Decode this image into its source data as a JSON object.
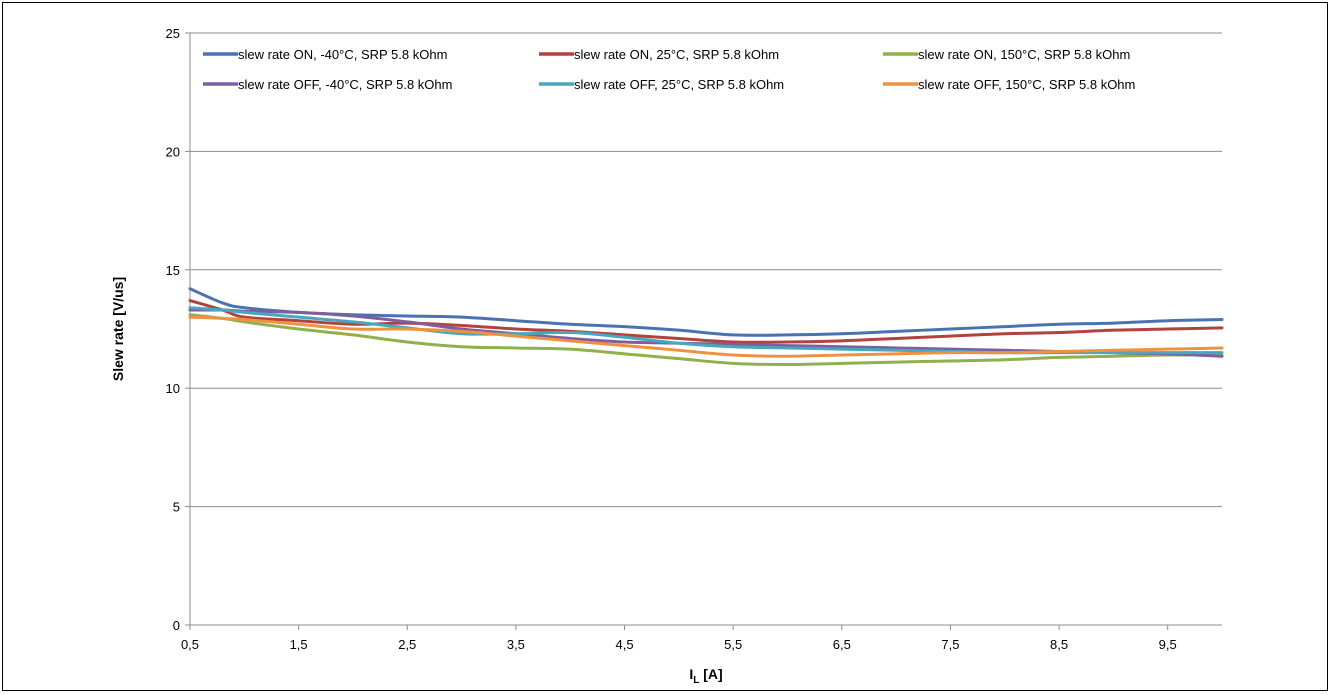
{
  "chart_data": {
    "type": "line",
    "xlabel_main": "I",
    "xlabel_sub": "L",
    "xlabel_unit": " [A]",
    "ylabel": "Slew rate  [V/us]",
    "xlim": [
      0.5,
      10.0
    ],
    "ylim": [
      0,
      25
    ],
    "x_ticks": [
      "0,5",
      "1,5",
      "2,5",
      "3,5",
      "4,5",
      "5,5",
      "6,5",
      "7,5",
      "8,5",
      "9,5"
    ],
    "x_tick_values": [
      0.5,
      1.5,
      2.5,
      3.5,
      4.5,
      5.5,
      6.5,
      7.5,
      8.5,
      9.5
    ],
    "y_ticks": [
      "0",
      "5",
      "10",
      "15",
      "20",
      "25"
    ],
    "y_tick_values": [
      0,
      5,
      10,
      15,
      20,
      25
    ],
    "grid": "horizontal",
    "legend_position": "top",
    "series": [
      {
        "name": "slew rate ON, -40°C, SRP 5.8 kOhm",
        "color": "#4a72b0",
        "x": [
          0.5,
          0.8,
          1.0,
          1.5,
          2.0,
          2.5,
          3.0,
          3.5,
          4.0,
          4.5,
          5.0,
          5.5,
          6.0,
          6.5,
          7.0,
          7.5,
          8.0,
          8.5,
          9.0,
          9.5,
          10.0
        ],
        "y": [
          14.2,
          13.6,
          13.4,
          13.2,
          13.1,
          13.05,
          13.0,
          12.85,
          12.7,
          12.6,
          12.45,
          12.25,
          12.25,
          12.3,
          12.4,
          12.5,
          12.6,
          12.7,
          12.75,
          12.85,
          12.9
        ]
      },
      {
        "name": "slew rate ON, 25°C, SRP 5.8 kOhm",
        "color": "#b0433d",
        "x": [
          0.5,
          0.8,
          1.0,
          1.5,
          2.0,
          2.5,
          3.0,
          3.5,
          4.0,
          4.5,
          5.0,
          5.5,
          6.0,
          6.5,
          7.0,
          7.5,
          8.0,
          8.5,
          9.0,
          9.5,
          10.0
        ],
        "y": [
          13.7,
          13.3,
          13.0,
          12.85,
          12.7,
          12.75,
          12.65,
          12.5,
          12.4,
          12.25,
          12.1,
          11.95,
          11.95,
          12.0,
          12.1,
          12.2,
          12.3,
          12.35,
          12.45,
          12.5,
          12.55
        ]
      },
      {
        "name": "slew rate ON, 150°C, SRP 5.8 kOhm",
        "color": "#8fb04a",
        "x": [
          0.5,
          0.8,
          1.0,
          1.5,
          2.0,
          2.5,
          3.0,
          3.5,
          4.0,
          4.5,
          5.0,
          5.5,
          6.0,
          6.5,
          7.0,
          7.5,
          8.0,
          8.5,
          9.0,
          9.5,
          10.0
        ],
        "y": [
          13.1,
          12.95,
          12.8,
          12.5,
          12.25,
          11.95,
          11.75,
          11.7,
          11.65,
          11.45,
          11.25,
          11.05,
          11.0,
          11.05,
          11.1,
          11.15,
          11.2,
          11.3,
          11.35,
          11.4,
          11.4
        ]
      },
      {
        "name": "slew rate OFF, -40°C, SRP 5.8 kOhm",
        "color": "#7d5fa0",
        "x": [
          0.5,
          0.8,
          1.0,
          1.5,
          2.0,
          2.5,
          3.0,
          3.5,
          4.0,
          4.5,
          5.0,
          5.5,
          6.0,
          6.5,
          7.0,
          7.5,
          8.0,
          8.5,
          9.0,
          9.5,
          10.0
        ],
        "y": [
          13.3,
          13.3,
          13.25,
          13.2,
          13.05,
          12.8,
          12.5,
          12.3,
          12.1,
          11.95,
          11.9,
          11.85,
          11.8,
          11.75,
          11.7,
          11.65,
          11.6,
          11.55,
          11.5,
          11.45,
          11.35
        ]
      },
      {
        "name": "slew rate OFF, 25°C, SRP 5.8 kOhm",
        "color": "#46a8bd",
        "x": [
          0.5,
          0.8,
          1.0,
          1.5,
          2.0,
          2.5,
          3.0,
          3.5,
          4.0,
          4.5,
          5.0,
          5.5,
          6.0,
          6.5,
          7.0,
          7.5,
          8.0,
          8.5,
          9.0,
          9.5,
          10.0
        ],
        "y": [
          13.4,
          13.3,
          13.2,
          13.0,
          12.8,
          12.55,
          12.3,
          12.3,
          12.35,
          12.15,
          11.9,
          11.75,
          11.7,
          11.65,
          11.6,
          11.55,
          11.5,
          11.5,
          11.5,
          11.5,
          11.5
        ]
      },
      {
        "name": "slew rate OFF, 150°C, SRP 5.8 kOhm",
        "color": "#ef9240",
        "x": [
          0.5,
          0.8,
          1.0,
          1.5,
          2.0,
          2.5,
          3.0,
          3.5,
          4.0,
          4.5,
          5.0,
          5.5,
          6.0,
          6.5,
          7.0,
          7.5,
          8.0,
          8.5,
          9.0,
          9.5,
          10.0
        ],
        "y": [
          13.0,
          12.95,
          12.9,
          12.7,
          12.5,
          12.5,
          12.4,
          12.2,
          12.0,
          11.8,
          11.6,
          11.4,
          11.35,
          11.4,
          11.45,
          11.5,
          11.5,
          11.55,
          11.6,
          11.65,
          11.7
        ]
      }
    ]
  }
}
